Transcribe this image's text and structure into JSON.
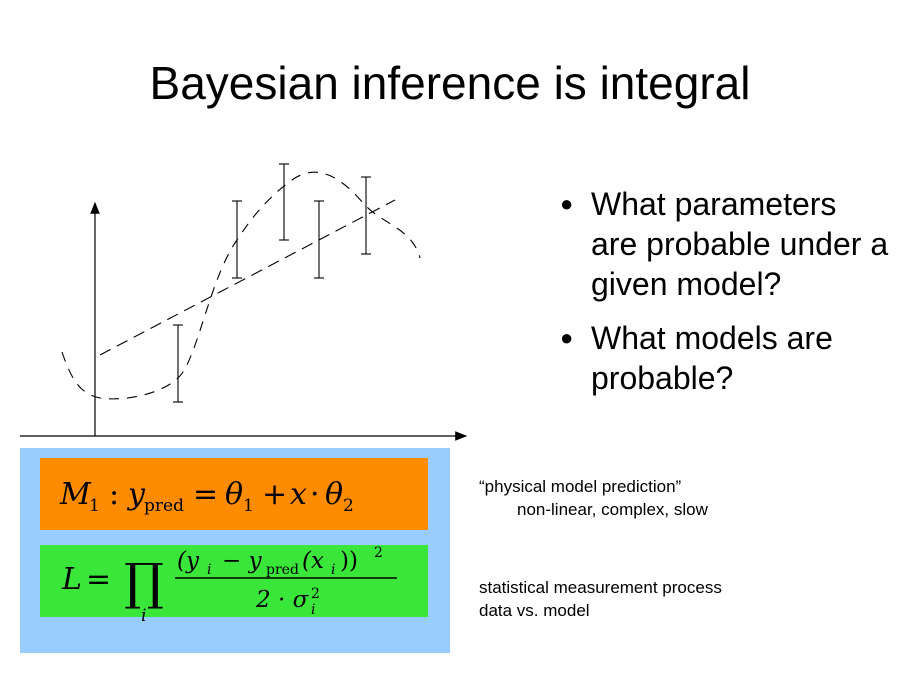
{
  "title": "Bayesian inference is integral",
  "bullets": [
    {
      "text": "What parameters are probable under a given model?"
    },
    {
      "text": "What models are probable?"
    }
  ],
  "model_formula": {
    "symbol": "M",
    "symbol_subscript": "1",
    "colon": ":",
    "y": "y",
    "y_subscript": "pred",
    "equals": "=",
    "theta1": "θ",
    "theta1_subscript": "1",
    "plus": "+",
    "x": "x",
    "dot": "·",
    "theta2": "θ",
    "theta2_subscript": "2"
  },
  "likelihood_formula": {
    "lhs": "L",
    "equals": "=",
    "product": "∏",
    "product_index": "i",
    "numerator": "(y",
    "numerator_i": "i",
    "numerator_minus": "− y",
    "numerator_pred": "pred",
    "numerator_arg": "(x",
    "numerator_arg_i": "i",
    "numerator_close": "))",
    "numerator_power": "2",
    "denominator": "2 · σ",
    "denominator_power": "2",
    "denominator_i": "i"
  },
  "notes": {
    "model_label": "“physical model prediction”",
    "model_detail": "non-linear, complex, slow",
    "likelihood_label": "statistical measurement process",
    "likelihood_detail": "data vs. model"
  },
  "colors": {
    "panel": "#99ccff",
    "model_box": "#ff8c00",
    "likelihood_box": "#39e639"
  }
}
